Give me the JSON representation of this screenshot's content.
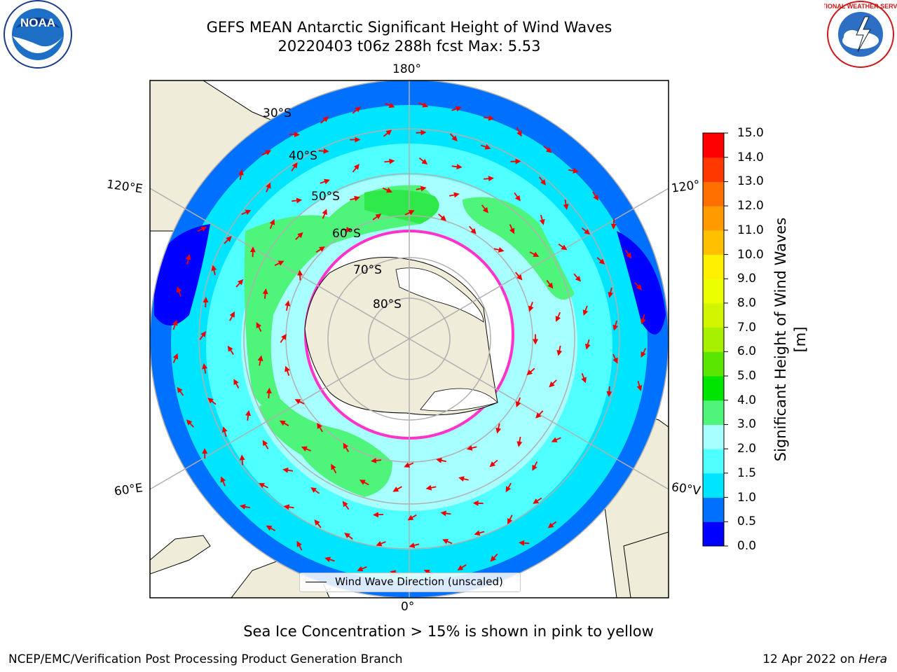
{
  "title": {
    "line1": "GEFS MEAN Antarctic Significant Height of Wind Waves",
    "line2": "20220403 t06z 288h fcst   Max: 5.53"
  },
  "logos": {
    "left": {
      "name": "noaa-logo",
      "text": "NOAA"
    },
    "right": {
      "name": "nws-logo",
      "text": "NATIONAL WEATHER SERVICE"
    }
  },
  "map": {
    "projection": "south-polar-stereographic",
    "longitude_labels": {
      "top": "180°",
      "bottom": "0°",
      "left_upper": "120°E",
      "left_lower": "60°E",
      "right_upper": "120°",
      "right_lower": "60°V"
    },
    "latitude_labels": [
      "30°S",
      "40°S",
      "50°S",
      "60°S",
      "70°S",
      "80°S"
    ],
    "legend": "Wind Wave Direction (unscaled)",
    "colors": {
      "land": "#efecd9",
      "ice": "#ffffff",
      "ice_edge": "#ff33cc",
      "arrow": "#ee0000",
      "grid": "#b0b0b0"
    }
  },
  "colorbar": {
    "label": "Significant Height of Wind Waves [m]",
    "ticks": [
      "0.0",
      "0.5",
      "1.0",
      "1.5",
      "2.0",
      "3.0",
      "4.0",
      "5.0",
      "6.0",
      "7.0",
      "8.0",
      "9.0",
      "10.0",
      "11.0",
      "12.0",
      "13.0",
      "14.0",
      "15.0"
    ],
    "colors": [
      "#0000ff",
      "#0070ff",
      "#00e5ff",
      "#50ffff",
      "#a8ffff",
      "#4ef57a",
      "#00e500",
      "#5ae600",
      "#a7f000",
      "#d2f500",
      "#ecff00",
      "#fff000",
      "#ffc000",
      "#ff9a00",
      "#ff6f00",
      "#ff3800",
      "#ff0000"
    ]
  },
  "notes": {
    "ice": "Sea Ice Concentration > 15% is shown in pink to yellow",
    "credit": "NCEP/EMC/Verification Post Processing Product Generation Branch",
    "date": "12 Apr 2022 on",
    "host": "Hera"
  }
}
